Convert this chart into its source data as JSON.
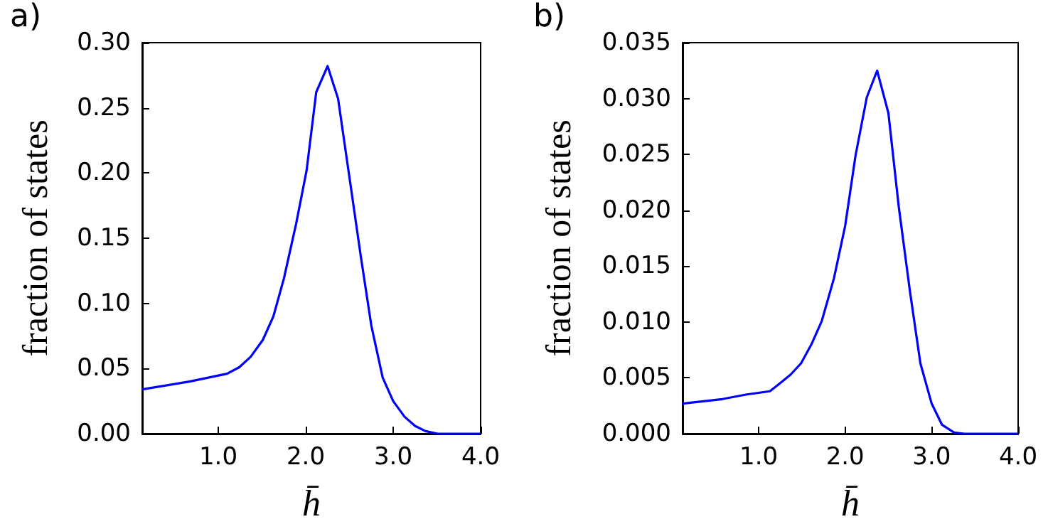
{
  "chart_data": [
    {
      "type": "line",
      "title": "a)",
      "xlabel": "h̄",
      "ylabel": "fraction of states",
      "marker": "none",
      "line_style": "solid",
      "grid": false,
      "xlim": [
        0.13,
        4.0
      ],
      "ylim": [
        0,
        0.3
      ],
      "xticks": [
        {
          "value": 1,
          "label": "1.0"
        },
        {
          "value": 2,
          "label": "2.0"
        },
        {
          "value": 3,
          "label": "3.0"
        },
        {
          "value": 4,
          "label": "4.0"
        }
      ],
      "yticks": [
        {
          "value": 0,
          "label": "0.00"
        },
        0.05,
        {
          "value": 0.1,
          "label": "0.10"
        },
        0.15,
        {
          "value": 0.2,
          "label": "0.20"
        },
        0.25,
        {
          "value": 0.3,
          "label": "0.30"
        }
      ],
      "series": [
        {
          "color": "#0000ff",
          "x": [
            0.13,
            0.67,
            1.1,
            1.24,
            1.37,
            1.51,
            1.63,
            1.75,
            1.89,
            2.01,
            2.12,
            2.25,
            2.37,
            2.51,
            2.63,
            2.75,
            2.88,
            3.0,
            3.13,
            3.25,
            3.37,
            3.51,
            3.64,
            4.0
          ],
          "values": [
            0.034,
            0.04,
            0.046,
            0.051,
            0.059,
            0.072,
            0.09,
            0.119,
            0.161,
            0.202,
            0.262,
            0.282,
            0.257,
            0.192,
            0.136,
            0.083,
            0.043,
            0.025,
            0.013,
            0.006,
            0.002,
            0,
            0,
            0
          ]
        }
      ]
    },
    {
      "type": "line",
      "title": "b)",
      "xlabel": "h̄",
      "ylabel": "fraction of states",
      "marker": "none",
      "line_style": "solid",
      "grid": false,
      "xlim": [
        0.12,
        4.0
      ],
      "ylim": [
        0,
        0.035
      ],
      "xticks": [
        {
          "value": 1,
          "label": "1.0"
        },
        {
          "value": 2,
          "label": "2.0"
        },
        {
          "value": 3,
          "label": "3.0"
        },
        {
          "value": 4,
          "label": "4.0"
        }
      ],
      "yticks": [
        {
          "value": 0,
          "label": "0.000"
        },
        0.005,
        {
          "value": 0.01,
          "label": "0.010"
        },
        0.015,
        {
          "value": 0.02,
          "label": "0.020"
        },
        0.025,
        {
          "value": 0.03,
          "label": "0.030"
        },
        0.035
      ],
      "series": [
        {
          "color": "#0000ff",
          "x": [
            0.12,
            0.58,
            0.85,
            1.13,
            1.26,
            1.37,
            1.49,
            1.61,
            1.73,
            1.87,
            2.0,
            2.12,
            2.25,
            2.37,
            2.5,
            2.62,
            2.75,
            2.87,
            3.0,
            3.12,
            3.26,
            3.38,
            4.0
          ],
          "values": [
            0.0027,
            0.0031,
            0.0035,
            0.0038,
            0.0046,
            0.0053,
            0.0063,
            0.008,
            0.0101,
            0.0139,
            0.0186,
            0.0249,
            0.0301,
            0.0325,
            0.0287,
            0.0203,
            0.0127,
            0.0063,
            0.0027,
            0.0008,
            0.0001,
            0,
            0
          ]
        }
      ]
    }
  ]
}
